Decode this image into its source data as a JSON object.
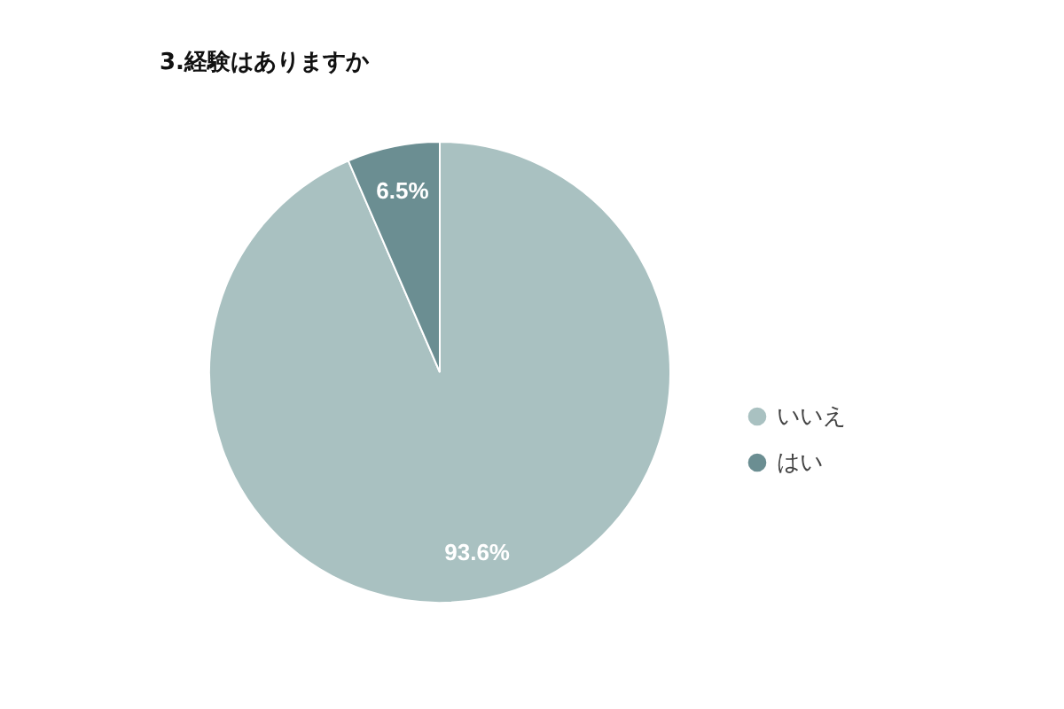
{
  "chart_data": {
    "type": "pie",
    "title": "3.経験はありますか",
    "categories": [
      "いいえ",
      "はい"
    ],
    "values": [
      93.6,
      6.5
    ],
    "colors": [
      "#a9c1c1",
      "#6b8e92"
    ],
    "value_labels": [
      "93.6%",
      "6.5%"
    ],
    "legend": "right"
  }
}
